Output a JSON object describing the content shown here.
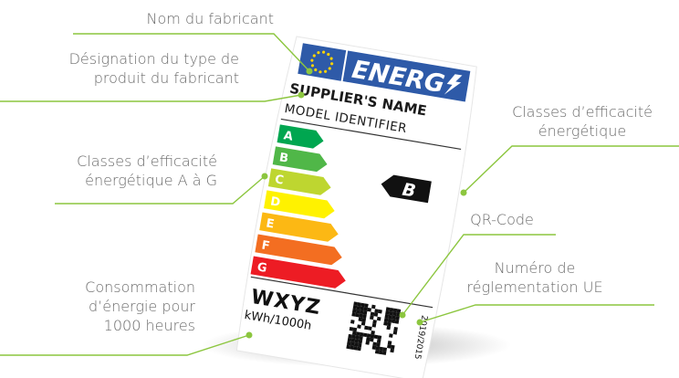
{
  "callouts": {
    "manufacturer_name": "Nom du fabricant",
    "model_identifier_line1": "Désignation du type de",
    "model_identifier_line2": "produit du fabricant",
    "classes_scale_line1": "Classes d’efficacité",
    "classes_scale_line2": "énergétique A à G",
    "class_line1": "Classes d’efficacité",
    "class_line2": "énergétique",
    "qr_code": "QR-Code",
    "regulation_line1": "Numéro de",
    "regulation_line2": "réglementation UE",
    "consumption_line1": "Consommation",
    "consumption_line2": "d’énergie pour",
    "consumption_line3": "1000 heures"
  },
  "label": {
    "energy_title": "ENERG",
    "supplier_name": "SUPPLIER'S NAME",
    "model_identifier": "MODEL IDENTIFIER",
    "classes": [
      {
        "letter": "A",
        "color": "#00a650"
      },
      {
        "letter": "B",
        "color": "#50b748"
      },
      {
        "letter": "C",
        "color": "#bed630"
      },
      {
        "letter": "D",
        "color": "#fff200"
      },
      {
        "letter": "E",
        "color": "#fcb814"
      },
      {
        "letter": "F",
        "color": "#f36e21"
      },
      {
        "letter": "G",
        "color": "#ed1c24"
      }
    ],
    "current_class": "B",
    "consumption_value": "WXYZ",
    "consumption_unit": "kWh/1000h",
    "regulation_number": "2019/2015"
  },
  "colors": {
    "accent_green": "#8cc63f",
    "eu_blue": "#2e5aa8",
    "eu_star": "#ffd400",
    "text_gray": "#6b6b6b"
  }
}
